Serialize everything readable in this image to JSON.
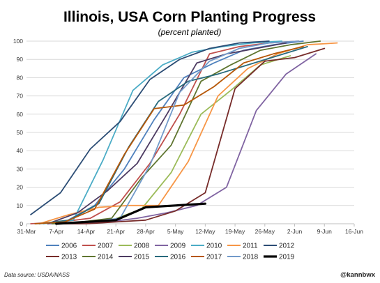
{
  "chart_data": {
    "type": "line",
    "title": "Illinois, USA Corn Planting Progress",
    "subtitle": "(percent planted)",
    "xlabel": "",
    "ylabel": "",
    "ylim": [
      0,
      100
    ],
    "y_ticks": [
      0,
      10,
      20,
      30,
      40,
      50,
      60,
      70,
      80,
      90,
      100
    ],
    "x_ticks": [
      "31-Mar",
      "7-Apr",
      "14-Apr",
      "21-Apr",
      "28-Apr",
      "5-May",
      "12-May",
      "19-May",
      "26-May",
      "2-Jun",
      "9-Jun",
      "16-Jun"
    ],
    "grid": "horizontal",
    "legend_position": "bottom",
    "source": "Data source: USDA/NASS",
    "handle": "@kannbwx",
    "series": [
      {
        "name": "2006",
        "color": "#4f81bd",
        "x": [
          "2-Apr",
          "9-Apr",
          "16-Apr",
          "23-Apr",
          "30-Apr",
          "7-May",
          "14-May",
          "21-May",
          "28-May",
          "4-Jun"
        ],
        "values": [
          0,
          1,
          10,
          30,
          57,
          80,
          88,
          95,
          98,
          100
        ]
      },
      {
        "name": "2007",
        "color": "#c0504d",
        "x": [
          "1-Apr",
          "8-Apr",
          "15-Apr",
          "22-Apr",
          "29-Apr",
          "6-May",
          "13-May",
          "20-May",
          "27-May",
          "3-Jun"
        ],
        "values": [
          0,
          1,
          3,
          12,
          33,
          60,
          93,
          97,
          99,
          100
        ]
      },
      {
        "name": "2008",
        "color": "#9bbb59",
        "x": [
          "6-Apr",
          "13-Apr",
          "20-Apr",
          "27-Apr",
          "4-May",
          "11-May",
          "18-May",
          "25-May",
          "1-Jun"
        ],
        "values": [
          0,
          0,
          2,
          8,
          28,
          60,
          73,
          87,
          92
        ]
      },
      {
        "name": "2009",
        "color": "#8064a2",
        "x": [
          "5-Apr",
          "12-Apr",
          "19-Apr",
          "26-Apr",
          "3-May",
          "10-May",
          "17-May",
          "24-May",
          "31-May",
          "7-Jun"
        ],
        "values": [
          0,
          0,
          1,
          3,
          6,
          10,
          20,
          62,
          82,
          93
        ]
      },
      {
        "name": "2010",
        "color": "#4bacc6",
        "x": [
          "4-Apr",
          "11-Apr",
          "18-Apr",
          "25-Apr",
          "2-May",
          "9-May",
          "16-May",
          "23-May",
          "30-May"
        ],
        "values": [
          0,
          2,
          35,
          73,
          87,
          94,
          97,
          99,
          100
        ]
      },
      {
        "name": "2011",
        "color": "#f79646",
        "x": [
          "3-Apr",
          "10-Apr",
          "17-Apr",
          "24-Apr",
          "1-May",
          "8-May",
          "15-May",
          "22-May",
          "29-May",
          "5-Jun",
          "12-Jun"
        ],
        "values": [
          0,
          5,
          9,
          10,
          10,
          34,
          70,
          85,
          93,
          98,
          99
        ]
      },
      {
        "name": "2012",
        "color": "#2c4d75",
        "x": [
          "1-Apr",
          "8-Apr",
          "15-Apr",
          "22-Apr",
          "29-Apr",
          "6-May",
          "13-May",
          "20-May",
          "27-May"
        ],
        "values": [
          5,
          17,
          41,
          56,
          79,
          90,
          96,
          99,
          100
        ]
      },
      {
        "name": "2013",
        "color": "#772c2a",
        "x": [
          "7-Apr",
          "14-Apr",
          "21-Apr",
          "28-Apr",
          "5-May",
          "12-May",
          "19-May",
          "26-May",
          "2-Jun",
          "9-Jun"
        ],
        "values": [
          0,
          0,
          1,
          2,
          7,
          17,
          74,
          89,
          91,
          96
        ]
      },
      {
        "name": "2014",
        "color": "#5f7530",
        "x": [
          "6-Apr",
          "13-Apr",
          "20-Apr",
          "27-Apr",
          "4-May",
          "11-May",
          "18-May",
          "25-May",
          "1-Jun",
          "8-Jun"
        ],
        "values": [
          0,
          1,
          3,
          25,
          43,
          78,
          87,
          95,
          98,
          100
        ]
      },
      {
        "name": "2015",
        "color": "#4d3b62",
        "x": [
          "5-Apr",
          "12-Apr",
          "19-Apr",
          "26-Apr",
          "3-May",
          "10-May",
          "17-May",
          "24-May",
          "31-May"
        ],
        "values": [
          0,
          6,
          18,
          33,
          60,
          88,
          93,
          96,
          99
        ]
      },
      {
        "name": "2016",
        "color": "#276a7c",
        "x": [
          "3-Apr",
          "10-Apr",
          "17-Apr",
          "24-Apr",
          "1-May",
          "8-May",
          "15-May",
          "22-May",
          "29-May",
          "5-Jun"
        ],
        "values": [
          0,
          2,
          11,
          42,
          67,
          78,
          82,
          87,
          92,
          97
        ]
      },
      {
        "name": "2017",
        "color": "#b65708",
        "x": [
          "2-Apr",
          "9-Apr",
          "16-Apr",
          "23-Apr",
          "30-Apr",
          "7-May",
          "14-May",
          "21-May",
          "28-May",
          "4-Jun"
        ],
        "values": [
          0,
          1,
          8,
          38,
          63,
          65,
          75,
          88,
          93,
          97
        ]
      },
      {
        "name": "2018",
        "color": "#729aca",
        "x": [
          "8-Apr",
          "15-Apr",
          "22-Apr",
          "29-Apr",
          "6-May",
          "13-May",
          "20-May",
          "27-May",
          "3-Jun"
        ],
        "values": [
          0,
          1,
          3,
          32,
          72,
          89,
          96,
          99,
          100
        ]
      },
      {
        "name": "2019",
        "color": "#000000",
        "x": [
          "7-Apr",
          "14-Apr",
          "21-Apr",
          "28-Apr",
          "5-May",
          "12-May"
        ],
        "values": [
          0,
          1,
          2,
          9,
          10,
          11
        ]
      }
    ]
  }
}
